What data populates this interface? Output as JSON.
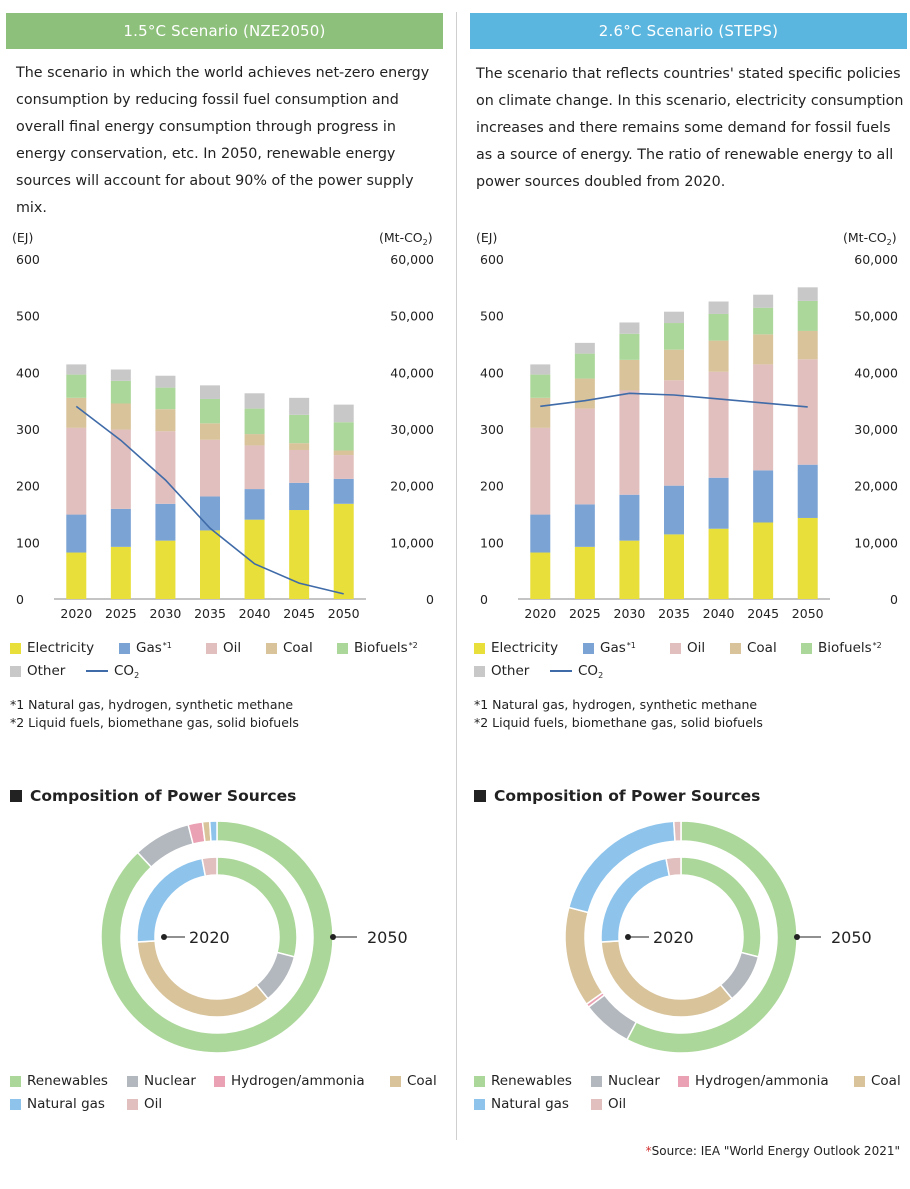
{
  "panels": [
    {
      "title": "1.5°C Scenario (NZE2050)",
      "banner_color": "#8dc07b",
      "description": "The scenario in which the world achieves net-zero energy consumption by reducing fossil fuel consumption and overall final energy consumption through progress in energy conservation, etc. In 2050, renewable energy sources will account for about 90% of the power supply mix.",
      "notes": [
        "*1 Natural gas, hydrogen, synthetic methane",
        "*2 Liquid fuels, biomethane gas, solid biofuels"
      ],
      "composition_title": "Composition of Power Sources"
    },
    {
      "title": "2.6°C Scenario (STEPS)",
      "banner_color": "#5bb6df",
      "description": "The scenario that reflects countries' stated specific policies on climate change. In this scenario, electricity consumption increases and there remains some demand for fossil fuels as a source of energy. The ratio of renewable energy to all power sources doubled from 2020.",
      "notes": [
        "*1 Natural gas, hydrogen, synthetic methane",
        "*2 Liquid fuels, biomethane gas, solid biofuels"
      ],
      "composition_title": "Composition of Power Sources"
    }
  ],
  "bar_legend": [
    {
      "label": "Electricity",
      "color": "#e8df3a",
      "sup": ""
    },
    {
      "label": "Gas",
      "color": "#7ba3d4",
      "sup": "*1"
    },
    {
      "label": "Oil",
      "color": "#e0bfbe",
      "sup": ""
    },
    {
      "label": "Coal",
      "color": "#d8c39b",
      "sup": ""
    },
    {
      "label": "Biofuels",
      "color": "#acd79a",
      "sup": "*2"
    },
    {
      "label": "Other",
      "color": "#c8c8c8",
      "sup": ""
    },
    {
      "label": "CO2",
      "color": "#3f6ba8",
      "sup": ""
    }
  ],
  "donut_legend": [
    {
      "label": "Renewables",
      "color": "#acd79a"
    },
    {
      "label": "Nuclear",
      "color": "#b3b8be"
    },
    {
      "label": "Hydrogen/ammonia",
      "color": "#eaa1b3"
    },
    {
      "label": "Coal",
      "color": "#d8c39b"
    },
    {
      "label": "Natural gas",
      "color": "#8ec4ec"
    },
    {
      "label": "Oil",
      "color": "#e0bfbe"
    }
  ],
  "source": "Source: IEA \"World Energy Outlook 2021\"",
  "source_mark": "*",
  "chart_data": [
    {
      "type": "bar",
      "stacked": true,
      "scenario": "1.5°C Scenario (NZE2050)",
      "categories": [
        "2020",
        "2025",
        "2030",
        "2035",
        "2040",
        "2045",
        "2050"
      ],
      "ylabel_left": "(EJ)",
      "ylabel_right": "(Mt-CO2)",
      "ylim": [
        0,
        600
      ],
      "ylim_right": [
        0,
        60000
      ],
      "yticks_left": [
        "0",
        "100",
        "200",
        "300",
        "400",
        "500",
        "600"
      ],
      "yticks_right": [
        "0",
        "10,000",
        "20,000",
        "30,000",
        "40,000",
        "50,000",
        "60,000"
      ],
      "series": [
        {
          "name": "Electricity",
          "values": [
            82,
            92,
            103,
            121,
            140,
            157,
            168
          ]
        },
        {
          "name": "Gas",
          "values": [
            67,
            67,
            65,
            60,
            54,
            48,
            44
          ]
        },
        {
          "name": "Oil",
          "values": [
            153,
            140,
            128,
            100,
            77,
            58,
            42
          ]
        },
        {
          "name": "Coal",
          "values": [
            53,
            46,
            39,
            29,
            20,
            12,
            8
          ]
        },
        {
          "name": "Biofuels",
          "values": [
            41,
            40,
            38,
            43,
            45,
            50,
            50
          ]
        },
        {
          "name": "Other",
          "values": [
            18,
            20,
            21,
            24,
            27,
            30,
            31
          ]
        }
      ],
      "line": {
        "name": "CO2",
        "values": [
          34000,
          28000,
          21000,
          12500,
          6200,
          2800,
          900
        ]
      }
    },
    {
      "type": "bar",
      "stacked": true,
      "scenario": "2.6°C Scenario (STEPS)",
      "categories": [
        "2020",
        "2025",
        "2030",
        "2035",
        "2040",
        "2045",
        "2050"
      ],
      "ylabel_left": "(EJ)",
      "ylabel_right": "(Mt-CO2)",
      "ylim": [
        0,
        600
      ],
      "ylim_right": [
        0,
        60000
      ],
      "yticks_left": [
        "0",
        "100",
        "200",
        "300",
        "400",
        "500",
        "600"
      ],
      "yticks_right": [
        "0",
        "10,000",
        "20,000",
        "30,000",
        "40,000",
        "50,000",
        "60,000"
      ],
      "series": [
        {
          "name": "Electricity",
          "values": [
            82,
            92,
            103,
            114,
            124,
            135,
            143
          ]
        },
        {
          "name": "Gas",
          "values": [
            67,
            75,
            81,
            86,
            90,
            92,
            94
          ]
        },
        {
          "name": "Oil",
          "values": [
            153,
            169,
            184,
            186,
            187,
            187,
            186
          ]
        },
        {
          "name": "Coal",
          "values": [
            53,
            53,
            54,
            54,
            55,
            53,
            50
          ]
        },
        {
          "name": "Biofuels",
          "values": [
            41,
            44,
            46,
            47,
            47,
            47,
            53
          ]
        },
        {
          "name": "Other",
          "values": [
            18,
            19,
            20,
            20,
            22,
            23,
            24
          ]
        }
      ],
      "line": {
        "name": "CO2",
        "values": [
          34000,
          35000,
          36300,
          36000,
          35300,
          34600,
          33900
        ]
      }
    },
    {
      "type": "pie",
      "style": "nested-donut",
      "scenario": "1.5°C Scenario (NZE2050)",
      "categories": [
        "Renewables",
        "Nuclear",
        "Hydrogen/ammonia",
        "Coal",
        "Natural gas",
        "Oil"
      ],
      "series": [
        {
          "name": "2020",
          "values": [
            29,
            10,
            0,
            35,
            23,
            3
          ]
        },
        {
          "name": "2050",
          "values": [
            88,
            8,
            2,
            1,
            1,
            0
          ]
        }
      ]
    },
    {
      "type": "pie",
      "style": "nested-donut",
      "scenario": "2.6°C Scenario (STEPS)",
      "categories": [
        "Renewables",
        "Nuclear",
        "Hydrogen/ammonia",
        "Coal",
        "Natural gas",
        "Oil"
      ],
      "series": [
        {
          "name": "2020",
          "values": [
            29,
            10,
            0,
            35,
            23,
            3
          ]
        },
        {
          "name": "2050",
          "values": [
            58,
            7,
            0.5,
            14,
            20,
            1
          ]
        }
      ]
    }
  ]
}
